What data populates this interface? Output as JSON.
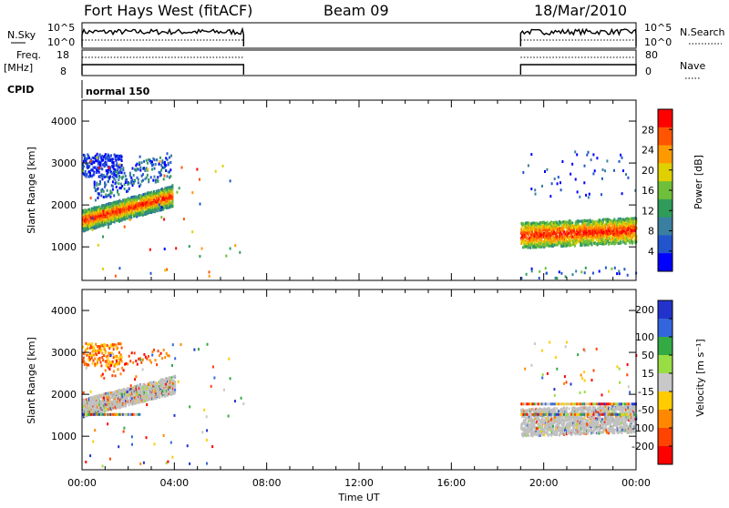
{
  "header": {
    "station": "Fort Hays West (fitACF)",
    "beam": "Beam 09",
    "date": "18/Mar/2010"
  },
  "summary": {
    "nsky_label": "N.Sky",
    "nsky_ticks": [
      "10^5",
      "10^0"
    ],
    "nsearch_label": "N.Search",
    "nsearch_ticks": [
      "10^5",
      "10^0"
    ],
    "freq_label": "Freq.",
    "freq_unit": "[MHz]",
    "freq_ticks": [
      "18",
      "8"
    ],
    "nave_label": "Nave",
    "nave_ticks": [
      "80",
      "0"
    ],
    "cpid_label": "CPID",
    "cpid_value": "normal 150"
  },
  "chart_data": [
    {
      "type": "heatmap",
      "name": "power",
      "ylabel": "Slant Range [km]",
      "xlabel": "",
      "x_ticks": [
        "00:00",
        "04:00",
        "08:00",
        "12:00",
        "16:00",
        "20:00",
        "00:00"
      ],
      "x_range_hours": [
        0,
        24
      ],
      "ylim": [
        200,
        4500
      ],
      "y_ticks": [
        "1000",
        "2000",
        "3000",
        "4000"
      ],
      "colorbar_label": "Power [dB]",
      "colorbar_ticks": [
        "4",
        "8",
        "12",
        "16",
        "20",
        "24",
        "28"
      ],
      "colorbar_range": [
        0,
        32
      ],
      "colors": [
        "#0000ff",
        "#2255cc",
        "#3a7fa0",
        "#2f9c5a",
        "#6fbf3a",
        "#e0d000",
        "#ff9900",
        "#ff5500",
        "#ff0000"
      ],
      "data_windows_hours": [
        [
          0,
          7
        ],
        [
          19,
          24
        ]
      ]
    },
    {
      "type": "heatmap",
      "name": "velocity",
      "ylabel": "Slant Range [km]",
      "xlabel": "Time UT",
      "x_ticks": [
        "00:00",
        "04:00",
        "08:00",
        "12:00",
        "16:00",
        "20:00",
        "00:00"
      ],
      "x_range_hours": [
        0,
        24
      ],
      "ylim": [
        200,
        4500
      ],
      "y_ticks": [
        "1000",
        "2000",
        "3000",
        "4000"
      ],
      "colorbar_label": "Velocity [m s⁻¹]",
      "colorbar_ticks": [
        "200",
        "100",
        "50",
        "15",
        "-15",
        "-50",
        "-100",
        "-200"
      ],
      "colors": [
        "#2233cc",
        "#3366dd",
        "#33aa44",
        "#99dd44",
        "#c8c8c8",
        "#ffcc00",
        "#ff8800",
        "#ff4400",
        "#ff0000"
      ],
      "ground_scatter_color": "#c0c0c0",
      "data_windows_hours": [
        [
          0,
          7
        ],
        [
          19,
          24
        ]
      ]
    }
  ]
}
